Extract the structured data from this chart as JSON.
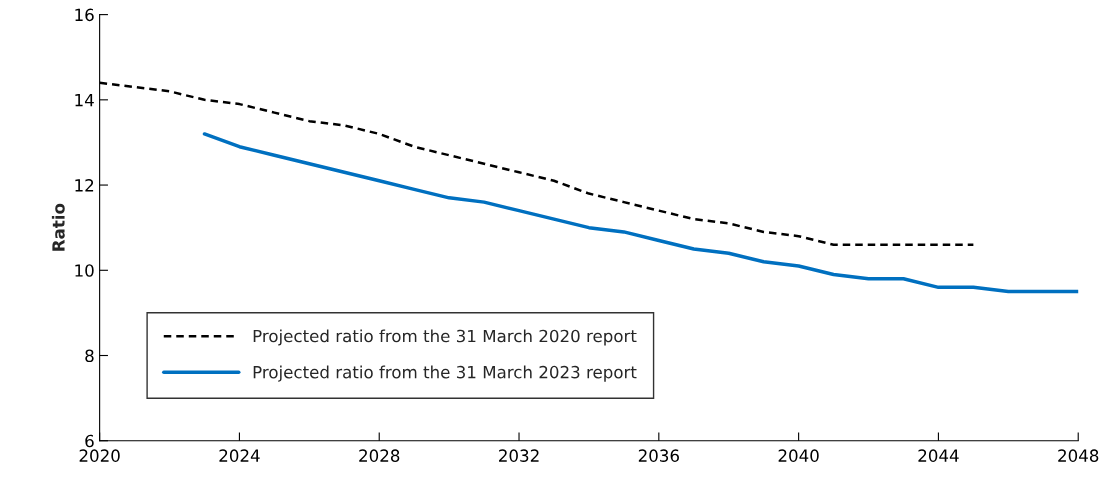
{
  "chart_data": {
    "type": "line",
    "ylabel": "Ratio",
    "x": [
      2020,
      2021,
      2022,
      2023,
      2024,
      2025,
      2026,
      2027,
      2028,
      2029,
      2030,
      2031,
      2032,
      2033,
      2034,
      2035,
      2036,
      2037,
      2038,
      2039,
      2040,
      2041,
      2042,
      2043,
      2044,
      2045,
      2046,
      2047,
      2048
    ],
    "series": [
      {
        "name": "Projected ratio from the 31 March 2020 report",
        "color": "#000000",
        "line_style": "dashed",
        "values": [
          14.4,
          14.3,
          14.2,
          14.0,
          13.9,
          13.7,
          13.5,
          13.4,
          13.2,
          12.9,
          12.7,
          12.5,
          12.3,
          12.1,
          11.8,
          11.6,
          11.4,
          11.2,
          11.1,
          10.9,
          10.8,
          10.6,
          10.6,
          10.6,
          10.6,
          10.6,
          null,
          null,
          null
        ]
      },
      {
        "name": "Projected ratio from the 31 March 2023 report",
        "color": "#0070c0",
        "line_style": "solid",
        "values": [
          null,
          null,
          null,
          13.2,
          12.9,
          12.7,
          12.5,
          12.3,
          12.1,
          11.9,
          11.7,
          11.6,
          11.4,
          11.2,
          11.0,
          10.9,
          10.7,
          10.5,
          10.4,
          10.2,
          10.1,
          9.9,
          9.8,
          9.8,
          9.6,
          9.6,
          9.5,
          9.5,
          9.5
        ]
      }
    ],
    "xlim": [
      2020,
      2048
    ],
    "xticks": [
      2020,
      2024,
      2028,
      2032,
      2036,
      2040,
      2044,
      2048
    ],
    "ylim": [
      6,
      16
    ],
    "yticks": [
      6,
      8,
      10,
      12,
      14,
      16
    ],
    "grid": false,
    "legend": "bottom left",
    "marker": "none"
  }
}
